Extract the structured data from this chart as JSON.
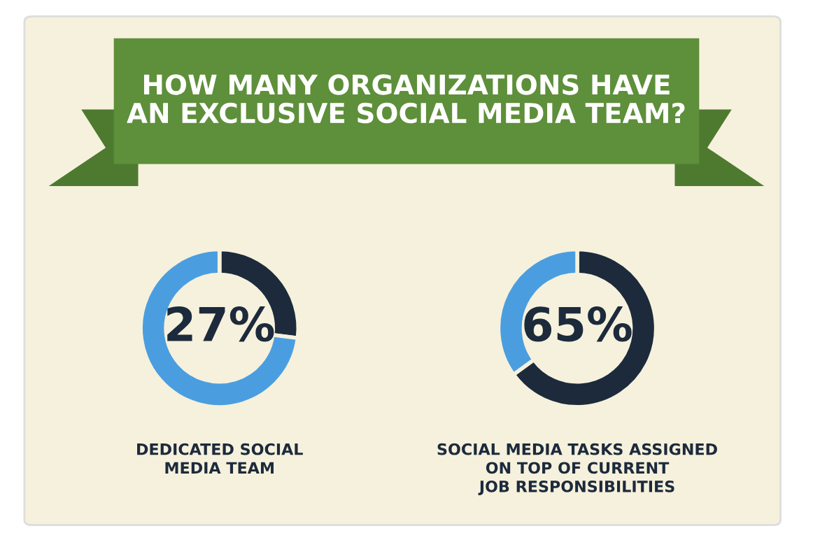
{
  "chart_data": [
    {
      "type": "donut",
      "title": "HOW MANY ORGANIZATIONS HAVE\nAN EXCLUSIVE SOCIAL MEDIA TEAM?",
      "categories": [
        null,
        null
      ],
      "values": [
        27,
        73
      ],
      "colors": [
        "#1c2a3c",
        "#4a9ee0"
      ],
      "value_labels": [
        "27%",
        null
      ],
      "xlabel": "DEDICATED SOCIAL\nMEDIA TEAM"
    },
    {
      "type": "donut",
      "categories": [
        null,
        null
      ],
      "values": [
        65,
        35
      ],
      "colors": [
        "#1c2a3c",
        "#4a9ee0"
      ],
      "value_labels": [
        "65%",
        null
      ],
      "xlabel": "SOCIAL MEDIA TASKS ASSIGNED\nON TOP OF CURRENT\nJOB RESPONSIBILITIES"
    }
  ]
}
